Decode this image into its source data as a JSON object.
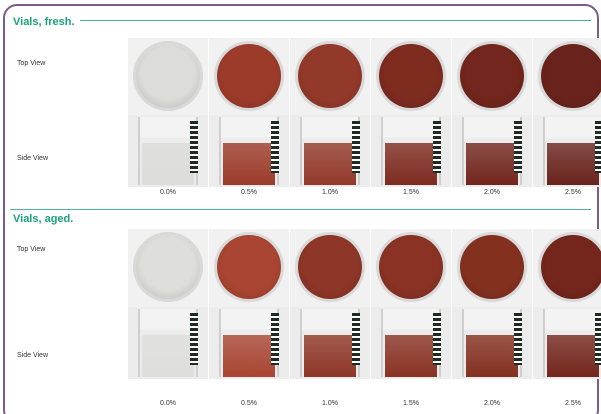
{
  "sections": [
    {
      "title": "Vials, fresh.",
      "top_label": "Top View",
      "side_label": "Side View",
      "samples": [
        {
          "percent": "0.0%",
          "color": "#dcdcd8"
        },
        {
          "percent": "0.5%",
          "color": "#9c3b2a"
        },
        {
          "percent": "1.0%",
          "color": "#93392a"
        },
        {
          "percent": "1.5%",
          "color": "#7e2b20"
        },
        {
          "percent": "2.0%",
          "color": "#72261d"
        },
        {
          "percent": "2.5%",
          "color": "#6a231c"
        }
      ]
    },
    {
      "title": "Vials, aged.",
      "top_label": "Top View",
      "side_label": "Side View",
      "samples": [
        {
          "percent": "0.0%",
          "color": "#dededa"
        },
        {
          "percent": "0.5%",
          "color": "#a94532"
        },
        {
          "percent": "1.0%",
          "color": "#8e3627"
        },
        {
          "percent": "1.5%",
          "color": "#8a3224"
        },
        {
          "percent": "2.0%",
          "color": "#84301f"
        },
        {
          "percent": "2.5%",
          "color": "#74261c"
        }
      ]
    }
  ]
}
